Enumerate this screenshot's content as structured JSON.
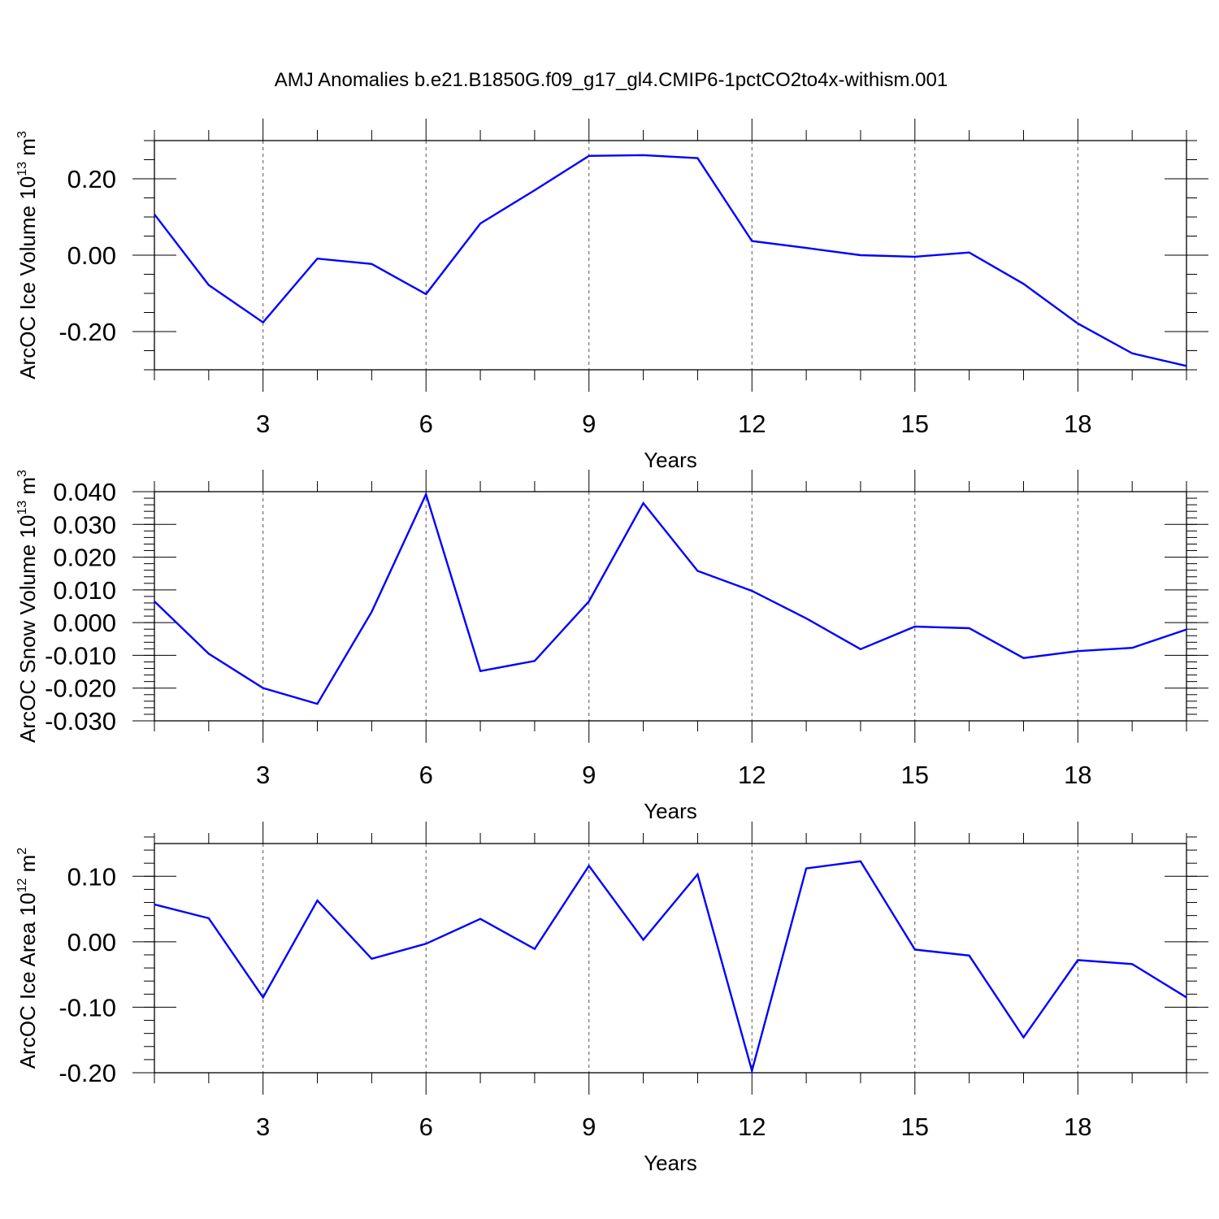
{
  "figure": {
    "title": "AMJ Anomalies b.e21.B1850G.f09_g17_gl4.CMIP6-1pctCO2to4x-withism.001"
  },
  "chart_data": [
    {
      "type": "line",
      "ylabel": {
        "main": "ArcOC Ice Volume 10",
        "exp": "13",
        "unit": " m",
        "unit_exp": "3"
      },
      "xlabel": "Years",
      "xlim": [
        1,
        20
      ],
      "ylim": [
        -0.3,
        0.3
      ],
      "x_ticks": [
        3,
        6,
        9,
        12,
        15,
        18
      ],
      "y_ticks": [
        -0.2,
        0.0,
        0.2
      ],
      "y_tick_labels": [
        "-0.20",
        "0.00",
        "0.20"
      ],
      "y_minor_step": 0.05,
      "grid": "vertical dashed at major x ticks",
      "line_color": "#0000ff",
      "x": [
        1,
        2,
        3,
        4,
        5,
        6,
        7,
        8,
        9,
        10,
        11,
        12,
        13,
        14,
        15,
        16,
        17,
        18,
        19,
        20
      ],
      "values": [
        0.107,
        -0.078,
        -0.176,
        -0.009,
        -0.023,
        -0.102,
        0.083,
        0.17,
        0.26,
        0.262,
        0.254,
        0.037,
        0.019,
        0.0,
        -0.004,
        0.007,
        -0.075,
        -0.179,
        -0.257,
        -0.29
      ]
    },
    {
      "type": "line",
      "ylabel": {
        "main": "ArcOC Snow Volume 10",
        "exp": "13",
        "unit": " m",
        "unit_exp": "3"
      },
      "xlabel": "Years",
      "xlim": [
        1,
        20
      ],
      "ylim": [
        -0.03,
        0.04
      ],
      "x_ticks": [
        3,
        6,
        9,
        12,
        15,
        18
      ],
      "y_ticks": [
        -0.03,
        -0.02,
        -0.01,
        0.0,
        0.01,
        0.02,
        0.03,
        0.04
      ],
      "y_tick_labels": [
        "-0.030",
        "-0.020",
        "-0.010",
        "0.000",
        "0.010",
        "0.020",
        "0.030",
        "0.040"
      ],
      "y_minor_step": 0.002,
      "grid": "vertical dashed at major x ticks",
      "line_color": "#0000ff",
      "x": [
        1,
        2,
        3,
        4,
        5,
        6,
        7,
        8,
        9,
        10,
        11,
        12,
        13,
        14,
        15,
        16,
        17,
        18,
        19,
        20
      ],
      "values": [
        0.0065,
        -0.0095,
        -0.02,
        -0.0248,
        0.0033,
        0.0392,
        -0.0148,
        -0.0117,
        0.0065,
        0.0365,
        0.0158,
        0.0097,
        0.0013,
        -0.0081,
        -0.0012,
        -0.0017,
        -0.0108,
        -0.0087,
        -0.0077,
        -0.0021
      ]
    },
    {
      "type": "line",
      "ylabel": {
        "main": "ArcOC Ice Area 10",
        "exp": "12",
        "unit": " m",
        "unit_exp": "2"
      },
      "xlabel": "Years",
      "xlim": [
        1,
        20
      ],
      "ylim": [
        -0.2,
        0.15
      ],
      "x_ticks": [
        3,
        6,
        9,
        12,
        15,
        18
      ],
      "y_ticks": [
        -0.2,
        -0.1,
        0.0,
        0.1
      ],
      "y_tick_labels": [
        "-0.20",
        "-0.10",
        "0.00",
        "0.10"
      ],
      "y_minor_step": 0.02,
      "grid": "vertical dashed at major x ticks",
      "line_color": "#0000ff",
      "x": [
        1,
        2,
        3,
        4,
        5,
        6,
        7,
        8,
        9,
        10,
        11,
        12,
        13,
        14,
        15,
        16,
        17,
        18,
        19,
        20
      ],
      "values": [
        0.057,
        0.036,
        -0.085,
        0.063,
        -0.026,
        -0.003,
        0.035,
        -0.011,
        0.116,
        0.003,
        0.103,
        -0.197,
        0.112,
        0.123,
        -0.012,
        -0.021,
        -0.146,
        -0.028,
        -0.034,
        -0.085
      ]
    }
  ]
}
